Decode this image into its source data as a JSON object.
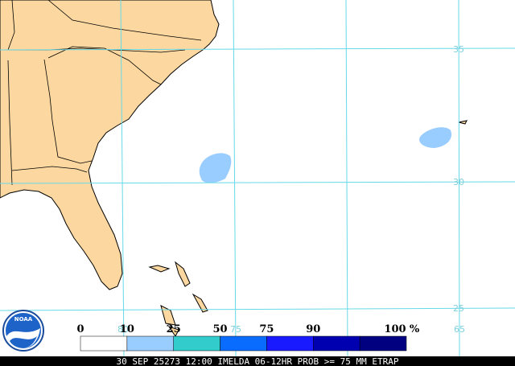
{
  "map": {
    "logo": "NOAA",
    "latitude_labels": [
      "35",
      "30",
      "25"
    ],
    "longitude_labels": [
      "80",
      "75",
      "65"
    ],
    "legend": {
      "labels": [
        "0",
        "10",
        "25",
        "50",
        "75",
        "90",
        "100"
      ],
      "unit": "%",
      "colors": [
        "#ffffff",
        "#99ccff",
        "#33cccc",
        "#0a6cff",
        "#1a1aff",
        "#0000b0",
        "#000080"
      ]
    },
    "footer": "30 SEP 25273 12:00 IMELDA 06-12HR PROB >= 75 MM ETRAP"
  }
}
